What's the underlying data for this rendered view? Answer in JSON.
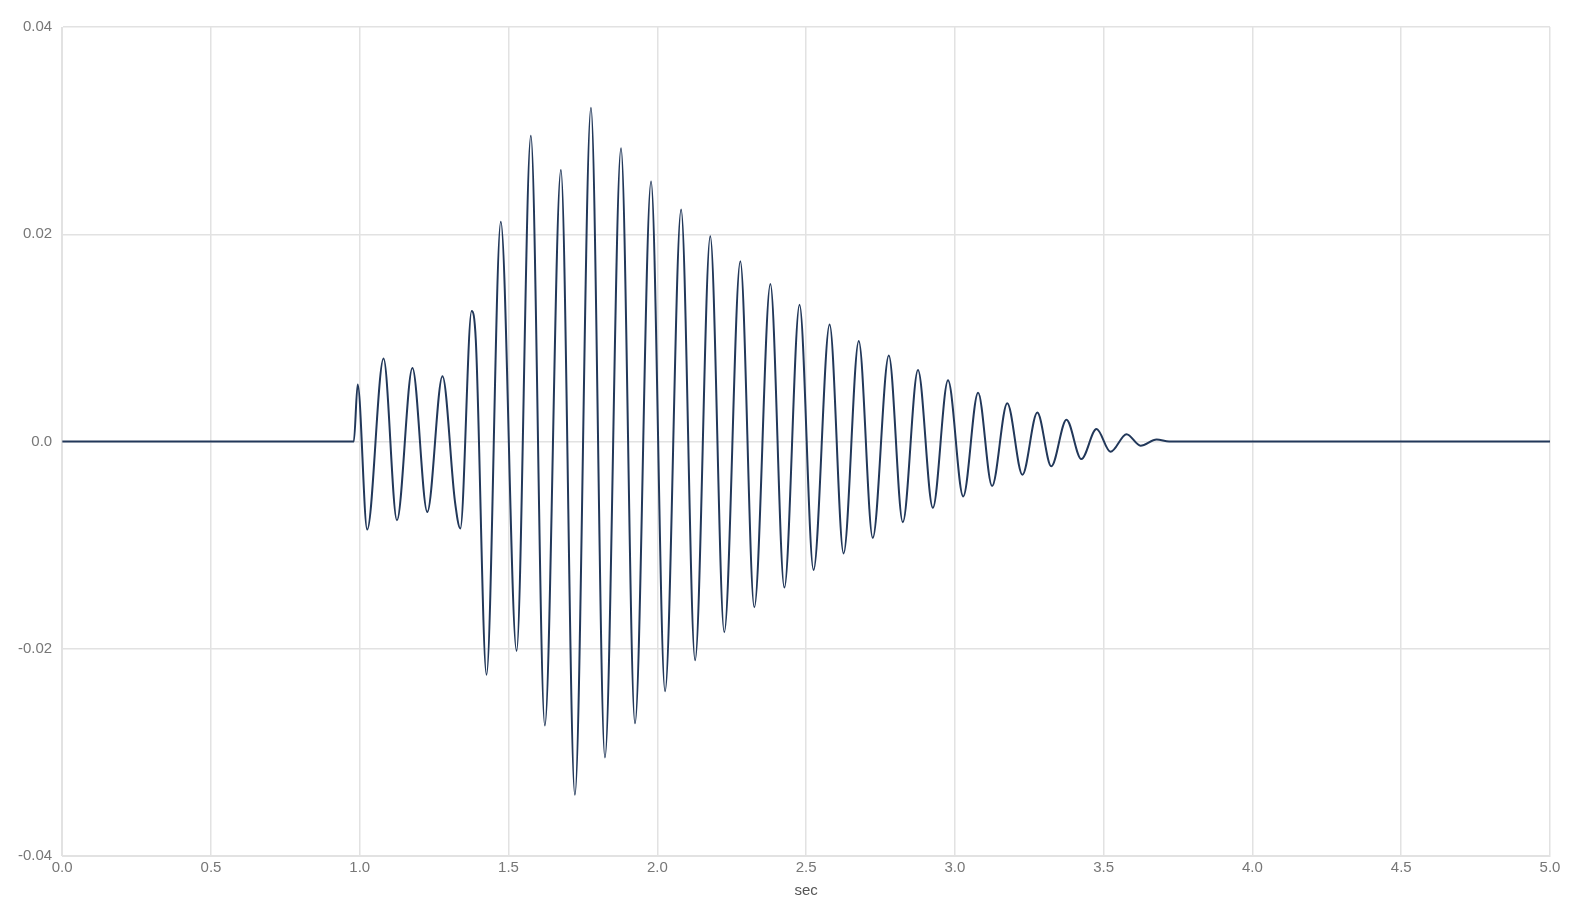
{
  "chart_data": {
    "type": "line",
    "xlabel": "sec",
    "xlim": [
      0,
      5
    ],
    "xticks": [
      {
        "value": 0,
        "label": "0.0"
      },
      0.5,
      {
        "value": 1,
        "label": "1.0"
      },
      1.5,
      {
        "value": 2,
        "label": "2.0"
      },
      2.5,
      {
        "value": 3,
        "label": "3.0"
      },
      3.5,
      {
        "value": 4,
        "label": "4.0"
      },
      4.5,
      {
        "value": 5,
        "label": "5.0"
      }
    ],
    "ylim": [
      -0.04,
      0.04
    ],
    "yticks": [
      -0.04,
      -0.02,
      {
        "value": 0,
        "label": "0.0"
      },
      0.02,
      0.04
    ],
    "grid": true,
    "legend": false,
    "marker": "none",
    "line_style": "solid",
    "series": [
      {
        "color": "#22385a",
        "x": [
          0,
          0.98,
          0.993,
          1.025,
          1.08,
          1.125,
          1.177,
          1.227,
          1.278,
          1.32,
          1.338,
          1.376,
          1.39,
          1.426,
          1.474,
          1.527,
          1.575,
          1.622,
          1.676,
          1.723,
          1.777,
          1.824,
          1.878,
          1.925,
          1.979,
          2.026,
          2.08,
          2.127,
          2.178,
          2.225,
          2.279,
          2.326,
          2.38,
          2.427,
          2.478,
          2.525,
          2.579,
          2.626,
          2.677,
          2.724,
          2.778,
          2.825,
          2.876,
          2.926,
          2.977,
          3.028,
          3.078,
          3.125,
          3.176,
          3.227,
          3.277,
          3.324,
          3.375,
          3.425,
          3.476,
          3.523,
          3.577,
          3.624,
          3.678,
          3.72,
          5
        ],
        "values": [
          0,
          0,
          0.0055,
          -0.0085,
          0.008,
          -0.0076,
          0.0071,
          -0.0068,
          0.0063,
          -0.0058,
          -0.0084,
          0.0126,
          0.0098,
          -0.0225,
          0.0212,
          -0.0202,
          0.0295,
          -0.0274,
          0.0262,
          -0.0341,
          0.0322,
          -0.0305,
          0.0283,
          -0.0272,
          0.0251,
          -0.0241,
          0.0224,
          -0.0211,
          0.0198,
          -0.0184,
          0.0174,
          -0.016,
          0.0152,
          -0.0141,
          0.0132,
          -0.0124,
          0.0113,
          -0.0108,
          0.0097,
          -0.0093,
          0.0083,
          -0.0078,
          0.0069,
          -0.0064,
          0.0059,
          -0.0053,
          0.0047,
          -0.0043,
          0.0037,
          -0.0032,
          0.0028,
          -0.0024,
          0.0021,
          -0.0017,
          0.0012,
          -0.001,
          0.0007,
          -0.0004,
          0.0002,
          0,
          0
        ]
      }
    ]
  }
}
